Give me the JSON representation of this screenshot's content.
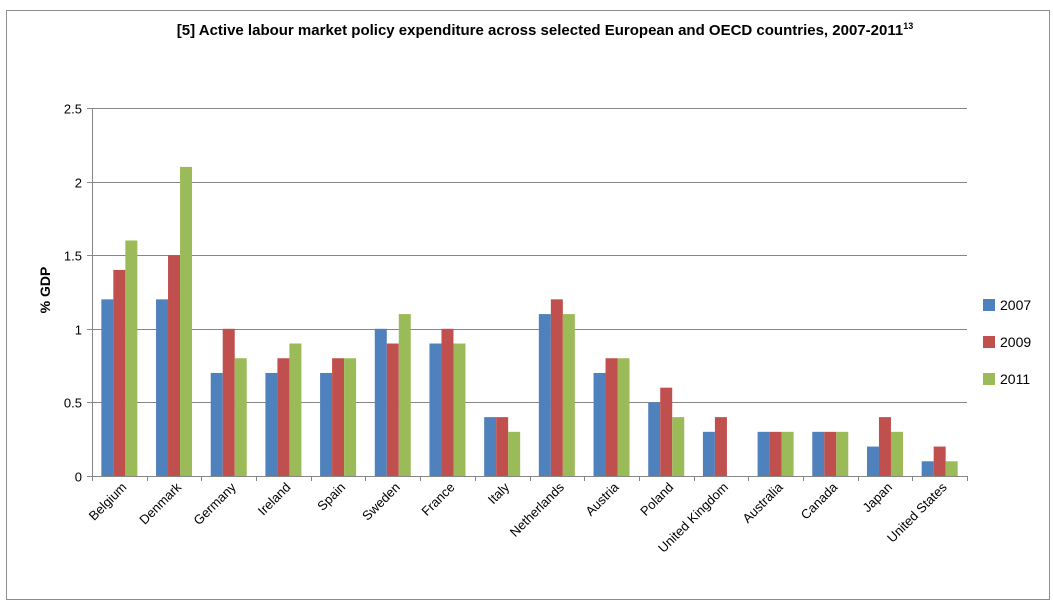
{
  "chart_data": {
    "type": "bar",
    "title": "[5] Active labour market policy expenditure across selected European and OECD countries, 2007-2011",
    "title_superscript": "13",
    "xlabel": "",
    "ylabel": "% GDP",
    "ylim": [
      0,
      2.5
    ],
    "yticks": [
      "0",
      "0.5",
      "1",
      "1.5",
      "2",
      "2.5"
    ],
    "grid": true,
    "legend_position": "right",
    "categories": [
      "Belgium",
      "Denmark",
      "Germany",
      "Ireland",
      "Spain",
      "Sweden",
      "France",
      "Italy",
      "Netherlands",
      "Austria",
      "Poland",
      "United Kingdom",
      "Australia",
      "Canada",
      "Japan",
      "United States"
    ],
    "series": [
      {
        "name": "2007",
        "color": "#4f81bd",
        "values": [
          1.2,
          1.2,
          0.7,
          0.7,
          0.7,
          1.0,
          0.9,
          0.4,
          1.1,
          0.7,
          0.5,
          0.3,
          0.3,
          0.3,
          0.2,
          0.1
        ]
      },
      {
        "name": "2009",
        "color": "#c0504d",
        "values": [
          1.4,
          1.5,
          1.0,
          0.8,
          0.8,
          0.9,
          1.0,
          0.4,
          1.2,
          0.8,
          0.6,
          0.4,
          0.3,
          0.3,
          0.4,
          0.2
        ]
      },
      {
        "name": "2011",
        "color": "#9bbb59",
        "values": [
          1.6,
          2.1,
          0.8,
          0.9,
          0.8,
          1.1,
          0.9,
          0.3,
          1.1,
          0.8,
          0.4,
          null,
          0.3,
          0.3,
          0.3,
          0.1
        ]
      }
    ]
  }
}
